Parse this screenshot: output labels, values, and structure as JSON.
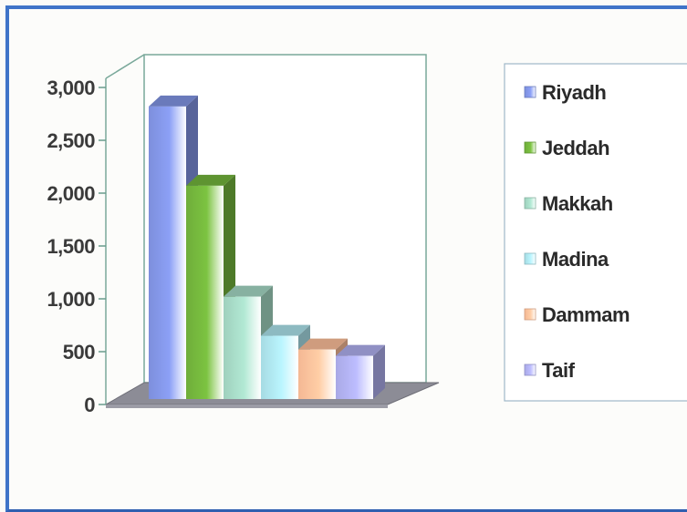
{
  "chart_data": {
    "type": "bar",
    "categories": [
      "Riyadh",
      "Jeddah",
      "Makkah",
      "Madina",
      "Dammam",
      "Taif"
    ],
    "values": [
      2820,
      2070,
      1020,
      650,
      520,
      460
    ],
    "ylim": [
      0,
      3000
    ],
    "yticks": [
      0,
      500,
      1000,
      1500,
      2000,
      2500,
      3000
    ],
    "ytick_labels": [
      "0",
      "500",
      "1,000",
      "1,500",
      "2,000",
      "2,500",
      "3,000"
    ],
    "legend": {
      "position": "right",
      "entries": [
        "Riyadh",
        "Jeddah",
        "Makkah",
        "Madina",
        "Dammam",
        "Taif"
      ]
    },
    "colors": [
      "#7d8fdc",
      "#6fae3a",
      "#9fd0bd",
      "#a6dbe3",
      "#f4b894",
      "#a9a9e6"
    ],
    "style": "3d-bar",
    "grid": false
  }
}
